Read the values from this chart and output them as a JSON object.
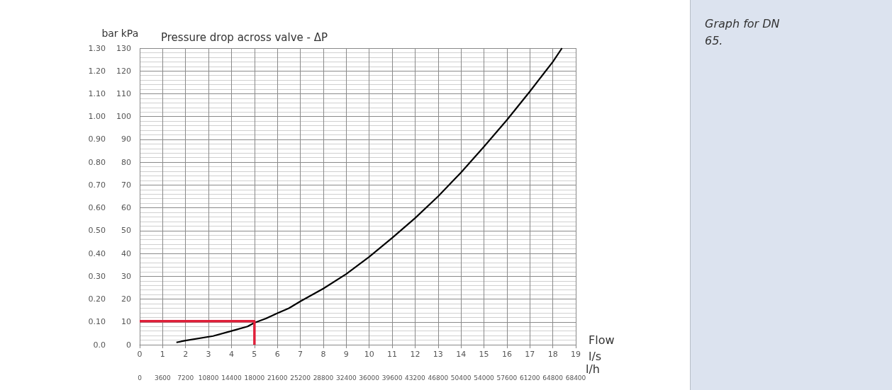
{
  "chart_data": {
    "type": "line",
    "title": "Pressure drop across valve - ΔP",
    "xlabel": "l/s",
    "x2label": "l/h",
    "ylabel": "kPa",
    "y2label": "bar",
    "annotations": [
      "Flow",
      "Graph for DN 65."
    ],
    "xlim": [
      0,
      19
    ],
    "xticks": [
      0,
      1,
      2,
      3,
      4,
      5,
      6,
      7,
      8,
      9,
      10,
      11,
      12,
      13,
      14,
      15,
      16,
      17,
      18,
      19
    ],
    "x2lim": [
      0,
      68400
    ],
    "x2ticks": [
      0,
      3600,
      7200,
      10800,
      14400,
      18000,
      21600,
      25200,
      28800,
      32400,
      36000,
      39600,
      43200,
      46800,
      50400,
      54000,
      57600,
      61200,
      64800,
      68400
    ],
    "ylim": [
      0,
      130
    ],
    "yticks": [
      0,
      10,
      20,
      30,
      40,
      50,
      60,
      70,
      80,
      90,
      100,
      110,
      120,
      130
    ],
    "y2lim": [
      0,
      1.3
    ],
    "y2ticks": [
      {
        "value": 0,
        "label": "0.0"
      },
      {
        "value": 0.1,
        "label": "0.10"
      },
      {
        "value": 0.2,
        "label": "0.20"
      },
      {
        "value": 0.3,
        "label": "0.30"
      },
      {
        "value": 0.4,
        "label": "0.40"
      },
      {
        "value": 0.5,
        "label": "0.50"
      },
      {
        "value": 0.6,
        "label": "0.60"
      },
      {
        "value": 0.7,
        "label": "0.70"
      },
      {
        "value": 0.8,
        "label": "0.80"
      },
      {
        "value": 0.9,
        "label": "0.90"
      },
      {
        "value": 1.0,
        "label": "1.00"
      },
      {
        "value": 1.1,
        "label": "1.10"
      },
      {
        "value": 1.2,
        "label": "1.20"
      },
      {
        "value": 1.3,
        "label": "1.30"
      }
    ],
    "grid": true,
    "marker": "none",
    "line_style": "solid",
    "series": [
      {
        "color": "#000000",
        "x": [
          1.6,
          2,
          3.2,
          4,
          4.7,
          5,
          5.5,
          6,
          6.5,
          7,
          8,
          9,
          10,
          11,
          12,
          13,
          14,
          15,
          16,
          17,
          18,
          18.4
        ],
        "values": [
          1,
          1.8,
          3.8,
          6,
          8,
          9.6,
          11.5,
          13.8,
          16,
          19,
          24.6,
          31,
          38.5,
          46.8,
          55.5,
          65,
          75.5,
          86.8,
          98.5,
          111,
          124,
          130
        ]
      },
      {
        "color": "#e0203a",
        "x": [
          0,
          5,
          5
        ],
        "values": [
          10.3,
          10.3,
          0
        ]
      }
    ]
  }
}
